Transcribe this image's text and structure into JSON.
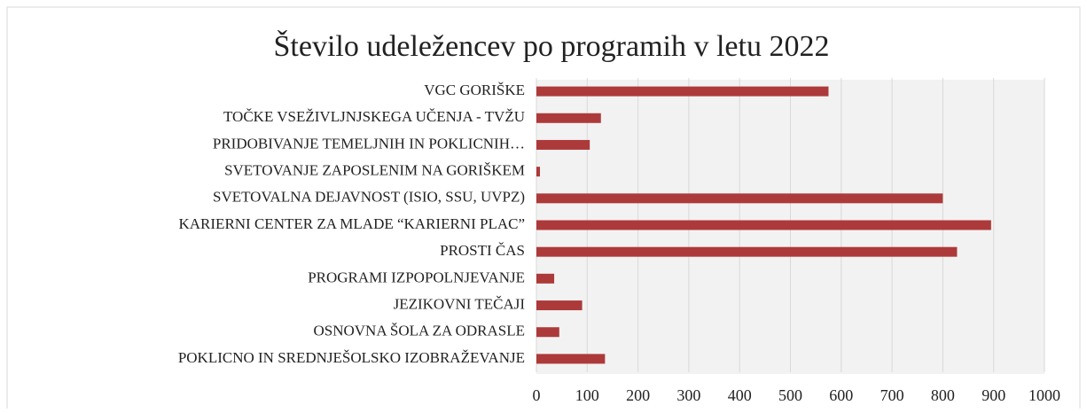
{
  "chart_data": {
    "type": "bar",
    "orientation": "horizontal",
    "title": "Število udeležencev po programih v letu 2022",
    "categories": [
      "VGC GORIŠKE",
      "TOČKE VSEŽIVLJNJSKEGA UČENJA - TVŽU",
      "PRIDOBIVANJE TEMELJNIH IN POKLICNIH…",
      "SVETOVANJE ZAPOSLENIM NA GORIŠKEM",
      "SVETOVALNA DEJAVNOST (ISIO, SSU, UVPZ)",
      "KARIERNI CENTER ZA MLADE “KARIERNI PLAC”",
      "PROSTI ČAS",
      "PROGRAMI IZPOPOLNJEVANJE",
      "JEZIKOVNI TEČAJI",
      "OSNOVNA ŠOLA ZA ODRASLE",
      "POKLICNO IN SREDNJEŠOLSKO IZOBRAŽEVANJE"
    ],
    "values": [
      575,
      127,
      105,
      7,
      800,
      895,
      828,
      35,
      90,
      45,
      135
    ],
    "color": "#ad3a3a",
    "xlim": [
      0,
      1000
    ],
    "xticks": [
      0,
      100,
      200,
      300,
      400,
      500,
      600,
      700,
      800,
      900,
      1000
    ],
    "grid": true
  }
}
